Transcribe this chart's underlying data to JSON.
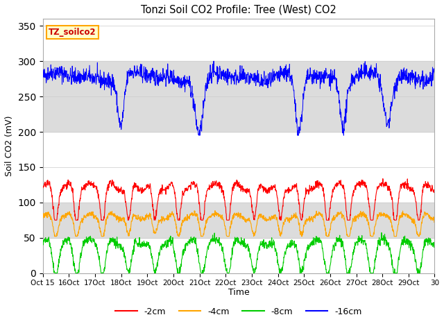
{
  "title": "Tonzi Soil CO2 Profile: Tree (West) CO2",
  "ylabel": "Soil CO2 (mV)",
  "xlabel": "Time",
  "ylim": [
    0,
    360
  ],
  "yticks": [
    0,
    50,
    100,
    150,
    200,
    250,
    300,
    350
  ],
  "legend_label": "TZ_soilco2",
  "legend_color_bg": "#FFFFCC",
  "legend_color_border": "#FFA500",
  "colors": {
    "m2cm": "#FF0000",
    "m4cm": "#FFA500",
    "m8cm": "#00CC00",
    "m16cm": "#0000FF"
  },
  "line_labels": [
    "-2cm",
    "-4cm",
    "-8cm",
    "-16cm"
  ],
  "background_bands": [
    {
      "ymin": 50,
      "ymax": 100,
      "color": "#DCDCDC"
    },
    {
      "ymin": 200,
      "ymax": 300,
      "color": "#DCDCDC"
    }
  ],
  "seed": 42,
  "n_points": 1500,
  "n_days": 16
}
